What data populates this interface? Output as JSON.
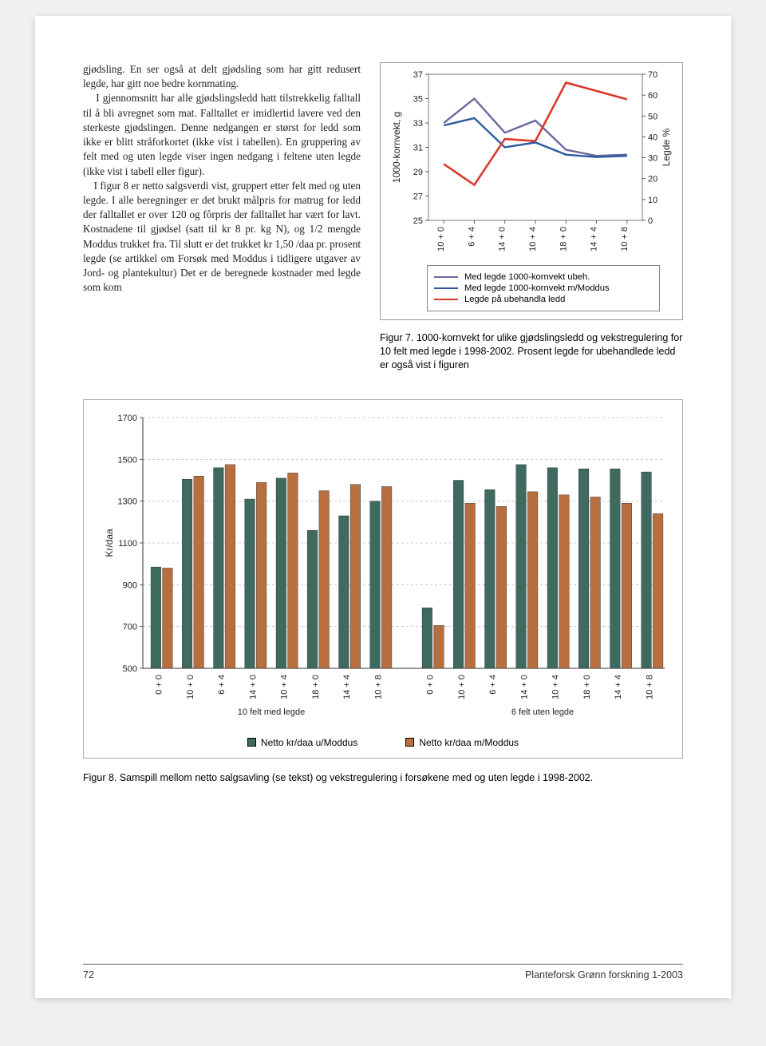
{
  "body_paragraph": "gjødsling. En ser også at delt gjødsling som har gitt redusert legde, har gitt noe bedre kornmating.\n    I gjennomsnitt har alle gjødslingsledd hatt tilstrekkelig falltall til å bli avregnet som mat. Falltallet er imidlertid lavere ved den sterkeste gjødslingen. Denne nedgangen er størst for ledd som ikke er blitt stråforkortet (ikke vist i tabellen). En gruppering av felt med og uten legde viser ingen nedgang i feltene uten legde (ikke vist i tabell eller figur).\n    I figur 8 er netto salgsverdi vist, gruppert etter felt med og uten legde. I alle beregninger er det brukt målpris for matrug for ledd der falltallet er over 120 og fôrpris der falltallet har vært for lavt. Kostnadene til gjødsel (satt til kr 8 pr. kg N), og 1/2 mengde Moddus trukket fra. Til slutt er det trukket kr 1,50 /daa pr. prosent legde (se artikkel om Forsøk med Moddus i tidligere utgaver av Jord- og plantekultur) Det er de beregnede kostnader med legde som kom",
  "line_chart": {
    "left_axis_label": "1000-kornvekt, g",
    "right_axis_label": "Legde %",
    "left_ticks": [
      25,
      27,
      29,
      31,
      33,
      35,
      37
    ],
    "right_ticks": [
      0,
      10,
      20,
      30,
      40,
      50,
      60,
      70
    ],
    "categories": [
      "10 + 0",
      "6 + 4",
      "14 + 0",
      "10 + 4",
      "18 + 0",
      "14 + 4",
      "10 + 8"
    ],
    "series": [
      {
        "name": "Med legde 1000-kornvekt ubeh.",
        "color": "#6b6a9e",
        "width": 2.4,
        "axis": "left",
        "values": [
          33.0,
          35.0,
          32.2,
          33.2,
          30.8,
          30.3,
          30.4
        ]
      },
      {
        "name": "Med legde 1000-kornvekt m/Moddus",
        "color": "#2f5aa0",
        "width": 2.4,
        "axis": "left",
        "values": [
          32.8,
          33.4,
          31.0,
          31.4,
          30.4,
          30.2,
          30.3
        ]
      },
      {
        "name": "Legde på ubehandla ledd",
        "color": "#d93a2b",
        "width": 2.6,
        "axis": "right",
        "values": [
          27,
          17,
          39,
          38,
          66,
          62,
          58
        ]
      }
    ],
    "legend": [
      {
        "label": "Med legde 1000-kornvekt ubeh.",
        "color": "#6b6a9e"
      },
      {
        "label": "Med legde 1000-kornvekt m/Moddus",
        "color": "#2f5aa0"
      },
      {
        "label": "Legde på ubehandla ledd",
        "color": "#d93a2b"
      }
    ],
    "caption": "Figur 7. 1000-kornvekt for ulike gjødslingsledd og vekstregulering for 10 felt med legde i 1998-2002. Prosent legde for ubehandlede ledd er også vist i figuren",
    "plot_bg": "#ffffff"
  },
  "bar_chart": {
    "y_axis_label": "Kr/daa",
    "y_ticks": [
      500,
      700,
      900,
      1100,
      1300,
      1500,
      1700
    ],
    "grid_color": "#bdbdbd",
    "grid_dash": "3,3",
    "groups": [
      {
        "title": "10 felt med legde",
        "categories": [
          "0 + 0",
          "10 + 0",
          "6 + 4",
          "14 + 0",
          "10 + 4",
          "18 + 0",
          "14 + 4",
          "10 + 8"
        ],
        "u": [
          985,
          1405,
          1460,
          1310,
          1410,
          1160,
          1230,
          1300
        ],
        "m": [
          980,
          1420,
          1475,
          1390,
          1435,
          1350,
          1380,
          1370
        ]
      },
      {
        "title": "6 felt uten legde",
        "categories": [
          "0 + 0",
          "10 + 0",
          "6 + 4",
          "14 + 0",
          "10 + 4",
          "18 + 0",
          "14 + 4",
          "10 + 8"
        ],
        "u": [
          790,
          1400,
          1355,
          1475,
          1460,
          1455,
          1455,
          1440
        ],
        "m": [
          705,
          1290,
          1275,
          1345,
          1330,
          1320,
          1290,
          1240
        ]
      }
    ],
    "colors": {
      "u": "#3e6a5f",
      "m": "#b86f3f"
    },
    "legend": [
      {
        "label": "Netto kr/daa u/Moddus",
        "color": "#3e6a5f"
      },
      {
        "label": "Netto kr/daa m/Moddus",
        "color": "#b86f3f"
      }
    ],
    "caption": "Figur 8. Samspill mellom netto salgsavling (se tekst) og vekstregulering i forsøkene med og uten legde i 1998-2002."
  },
  "footer": {
    "page": "72",
    "pub": "Planteforsk Grønn forskning 1-2003"
  }
}
